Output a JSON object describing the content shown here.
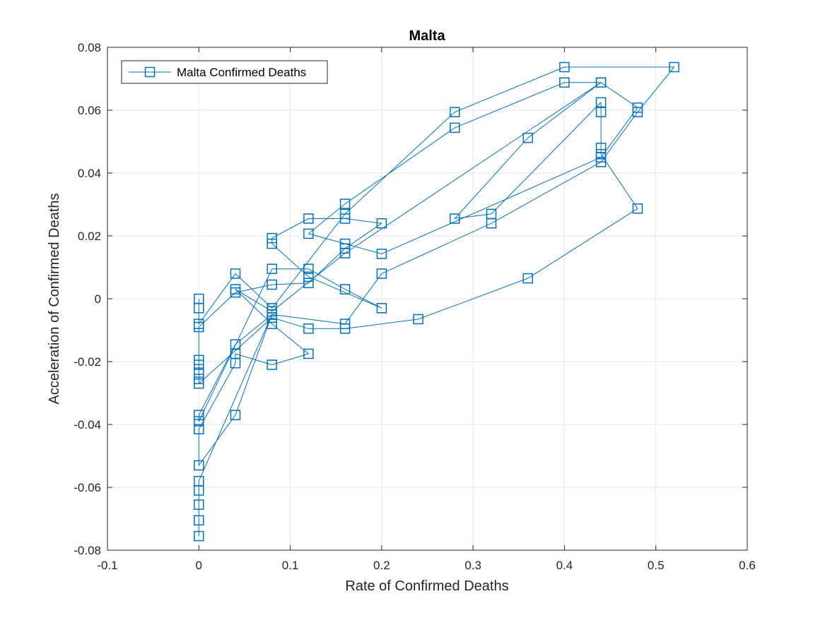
{
  "chart_data": {
    "type": "line",
    "title": "Malta",
    "xlabel": "Rate of Confirmed Deaths",
    "ylabel": "Acceleration of Confirmed Deaths",
    "xlim": [
      -0.1,
      0.6
    ],
    "ylim": [
      -0.08,
      0.08
    ],
    "xticks": [
      -0.1,
      0,
      0.1,
      0.2,
      0.3,
      0.4,
      0.5,
      0.6
    ],
    "xtick_labels": [
      "-0.1",
      "0",
      "0.1",
      "0.2",
      "0.3",
      "0.4",
      "0.5",
      "0.6"
    ],
    "yticks": [
      -0.08,
      -0.06,
      -0.04,
      -0.02,
      0,
      0.02,
      0.04,
      0.06,
      0.08
    ],
    "ytick_labels": [
      "-0.08",
      "-0.06",
      "-0.04",
      "-0.02",
      "0",
      "0.02",
      "0.04",
      "0.06",
      "0.08"
    ],
    "grid": true,
    "legend_position": "top-left",
    "marker": "square",
    "color": "#0072BD",
    "series": [
      {
        "name": "Malta Confirmed Deaths",
        "points": [
          [
            0,
            0
          ],
          [
            0,
            -0.003
          ],
          [
            0,
            -0.008
          ],
          [
            0.04,
            0.008
          ],
          [
            0.08,
            -0.003
          ],
          [
            0.16,
            0.027
          ],
          [
            0.28,
            0.0594
          ],
          [
            0.4,
            0.0737
          ],
          [
            0.52,
            0.0737
          ],
          [
            0.48,
            0.0594
          ],
          [
            0.44,
            0.0435
          ],
          [
            0.32,
            0.024
          ],
          [
            0.2,
            0.008
          ],
          [
            0.16,
            -0.008
          ],
          [
            0.08,
            -0.005
          ],
          [
            0.04,
            -0.0145
          ],
          [
            0,
            -0.037
          ],
          [
            0,
            -0.039
          ],
          [
            0.08,
            0.0095
          ],
          [
            0.12,
            0.0095
          ],
          [
            0.16,
            0.003
          ],
          [
            0.2,
            -0.003
          ],
          [
            0.12,
            0.007
          ],
          [
            0.08,
            0.0175
          ],
          [
            0.08,
            0.0193
          ],
          [
            0.12,
            0.0255
          ],
          [
            0.16,
            0.0255
          ],
          [
            0.2,
            0.024
          ],
          [
            0.16,
            0.016
          ],
          [
            0.12,
            0.005
          ],
          [
            0.08,
            0.0045
          ],
          [
            0.04,
            0.002
          ],
          [
            0,
            -0.009
          ],
          [
            0,
            -0.0195
          ],
          [
            0,
            -0.021
          ],
          [
            0,
            -0.0235
          ],
          [
            0,
            -0.0255
          ],
          [
            0,
            -0.027
          ],
          [
            0.08,
            -0.006
          ],
          [
            0.12,
            -0.0095
          ],
          [
            0.16,
            -0.0095
          ],
          [
            0.24,
            -0.0065
          ],
          [
            0.36,
            0.0065
          ],
          [
            0.48,
            0.0287
          ],
          [
            0.44,
            0.046
          ],
          [
            0.44,
            0.048
          ],
          [
            0.44,
            0.0594
          ],
          [
            0.44,
            0.0625
          ],
          [
            0.32,
            0.027
          ],
          [
            0.28,
            0.0255
          ],
          [
            0.36,
            0.0512
          ],
          [
            0.44,
            0.0688
          ],
          [
            0.4,
            0.0688
          ],
          [
            0.28,
            0.0544
          ],
          [
            0.16,
            0.0302
          ],
          [
            0.12,
            0.0207
          ],
          [
            0.16,
            0.0175
          ],
          [
            0.2,
            0.0143
          ],
          [
            0.44,
            0.045
          ],
          [
            0.48,
            0.0608
          ],
          [
            0.44,
            0.0688
          ],
          [
            0.16,
            0.0145
          ],
          [
            0.08,
            -0.004
          ],
          [
            0.04,
            0.003
          ],
          [
            0.08,
            -0.008
          ],
          [
            0.12,
            -0.0175
          ],
          [
            0.08,
            -0.021
          ],
          [
            0.04,
            -0.0175
          ],
          [
            0.04,
            -0.0205
          ],
          [
            0,
            -0.0415
          ],
          [
            0,
            -0.053
          ],
          [
            0.04,
            -0.037
          ],
          [
            0.08,
            -0.005
          ],
          [
            0,
            -0.058
          ],
          [
            0,
            -0.061
          ],
          [
            0,
            -0.0655
          ],
          [
            0,
            -0.0705
          ],
          [
            0,
            -0.0755
          ]
        ]
      }
    ]
  }
}
